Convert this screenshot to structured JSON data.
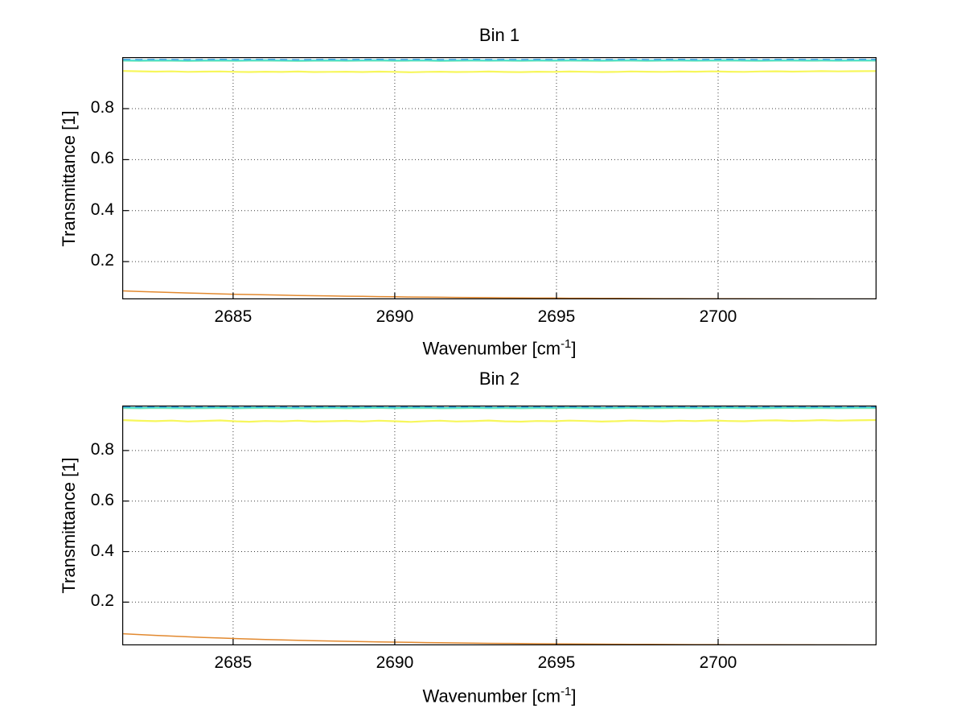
{
  "style": {
    "background": "#ffffff",
    "axis_color": "#000000",
    "grid_color": "#3c3c3c",
    "text_color": "#000000"
  },
  "labels": {
    "ylabel": "Transmittance [1]",
    "xlabel_pre": "Wavenumber [cm",
    "xlabel_sup": "-1",
    "xlabel_post": "]"
  },
  "chart_data": [
    {
      "type": "line",
      "title": "Bin 1",
      "xlabel": "Wavenumber [cm^-1]",
      "ylabel": "Transmittance [1]",
      "xlim": [
        2681.57,
        2704.9
      ],
      "ylim": [
        0.052,
        1.002
      ],
      "xticks": [
        2685,
        2690,
        2695,
        2700
      ],
      "yticks": [
        0.2,
        0.4,
        0.6,
        0.8
      ],
      "grid": true,
      "legend": false,
      "x": [
        2681.6,
        2682.1,
        2682.6,
        2683.1,
        2683.6,
        2684.1,
        2684.6,
        2685.1,
        2685.5,
        2686.0,
        2686.5,
        2687.0,
        2687.5,
        2688.0,
        2688.5,
        2689.0,
        2689.5,
        2690.0,
        2690.5,
        2691.0,
        2691.4,
        2691.9,
        2692.4,
        2692.9,
        2693.4,
        2693.9,
        2694.4,
        2694.9,
        2695.4,
        2695.9,
        2696.4,
        2696.9,
        2697.3,
        2697.8,
        2698.3,
        2698.8,
        2699.3,
        2699.8,
        2700.3,
        2700.8,
        2701.3,
        2701.8,
        2702.3,
        2702.8,
        2703.2,
        2703.7,
        2704.2,
        2704.9
      ],
      "series": [
        {
          "name": "upper-band-green",
          "color": "#7ae6b4",
          "dash": false,
          "values": [
            0.9868,
            0.9862,
            0.9871,
            0.9865,
            0.9858,
            0.9866,
            0.9872,
            0.9861,
            0.9867,
            0.9873,
            0.9864,
            0.9859,
            0.9866,
            0.9871,
            0.9863,
            0.9868,
            0.9874,
            0.9862,
            0.9867,
            0.9872,
            0.986,
            0.9866,
            0.9871,
            0.9864,
            0.9869,
            0.9863,
            0.987,
            0.9865,
            0.9872,
            0.9866,
            0.9861,
            0.9868,
            0.9873,
            0.9862,
            0.9867,
            0.9871,
            0.9864,
            0.9869,
            0.9874,
            0.9866,
            0.9862,
            0.9868,
            0.9872,
            0.9865,
            0.987,
            0.9864,
            0.9869,
            0.9867
          ]
        },
        {
          "name": "upper-band-cyan",
          "color": "#40e0d5",
          "dash": false,
          "values": [
            0.9902,
            0.9896,
            0.9905,
            0.9899,
            0.9893,
            0.9901,
            0.9907,
            0.9895,
            0.9902,
            0.9908,
            0.9898,
            0.9894,
            0.9901,
            0.9906,
            0.9897,
            0.9903,
            0.9909,
            0.9896,
            0.9902,
            0.9907,
            0.9895,
            0.9901,
            0.9906,
            0.9898,
            0.9904,
            0.9897,
            0.9905,
            0.9899,
            0.9907,
            0.9901,
            0.9896,
            0.9903,
            0.9908,
            0.9897,
            0.9902,
            0.9906,
            0.9898,
            0.9904,
            0.9909,
            0.9901,
            0.9897,
            0.9903,
            0.9907,
            0.9899,
            0.9905,
            0.9898,
            0.9904,
            0.9902
          ]
        },
        {
          "name": "upper-band-blue-dashed",
          "color": "#3d9fe0",
          "dash": true,
          "values": [
            0.9928,
            0.9922,
            0.993,
            0.9925,
            0.9919,
            0.9926,
            0.9932,
            0.9921,
            0.9927,
            0.9933,
            0.9924,
            0.992,
            0.9926,
            0.9931,
            0.9923,
            0.9928,
            0.9934,
            0.9922,
            0.9927,
            0.9932,
            0.9921,
            0.9926,
            0.9931,
            0.9924,
            0.9929,
            0.9923,
            0.993,
            0.9925,
            0.9932,
            0.9926,
            0.9921,
            0.9928,
            0.9933,
            0.9923,
            0.9927,
            0.9931,
            0.9924,
            0.9929,
            0.9934,
            0.9926,
            0.9922,
            0.9928,
            0.9932,
            0.9925,
            0.993,
            0.9924,
            0.9929,
            0.9927
          ]
        },
        {
          "name": "mid-yellow",
          "color": "#f7f75c",
          "dash": false,
          "values": [
            0.9478,
            0.9465,
            0.9452,
            0.946,
            0.9444,
            0.9451,
            0.9458,
            0.9441,
            0.9435,
            0.9449,
            0.944,
            0.9455,
            0.9437,
            0.9444,
            0.945,
            0.9436,
            0.9452,
            0.9441,
            0.9428,
            0.9443,
            0.945,
            0.9435,
            0.9442,
            0.9456,
            0.944,
            0.9434,
            0.9448,
            0.9441,
            0.9455,
            0.9447,
            0.9436,
            0.9444,
            0.9457,
            0.9449,
            0.9441,
            0.9456,
            0.9448,
            0.9462,
            0.945,
            0.9444,
            0.9458,
            0.9465,
            0.9452,
            0.946,
            0.9472,
            0.9461,
            0.9468,
            0.9474
          ]
        },
        {
          "name": "lower-orange",
          "color": "#e2892f",
          "dash": false,
          "values": [
            0.085,
            0.0827,
            0.0806,
            0.0787,
            0.0768,
            0.0752,
            0.0735,
            0.072,
            0.0708,
            0.0697,
            0.0684,
            0.0673,
            0.0661,
            0.0653,
            0.0642,
            0.0636,
            0.0626,
            0.062,
            0.0611,
            0.0607,
            0.0601,
            0.0597,
            0.059,
            0.0587,
            0.058,
            0.0578,
            0.0572,
            0.057,
            0.0565,
            0.0564,
            0.0559,
            0.0558,
            0.0554,
            0.0553,
            0.0549,
            0.0549,
            0.0545,
            0.0545,
            0.0542,
            0.0542,
            0.0539,
            0.0539,
            0.0536,
            0.0536,
            0.0534,
            0.0534,
            0.0532,
            0.0532
          ]
        }
      ]
    },
    {
      "type": "line",
      "title": "Bin 2",
      "xlabel": "Wavenumber [cm^-1]",
      "ylabel": "Transmittance [1]",
      "xlim": [
        2681.57,
        2704.9
      ],
      "ylim": [
        0.029,
        0.978
      ],
      "xticks": [
        2685,
        2690,
        2695,
        2700
      ],
      "yticks": [
        0.2,
        0.4,
        0.6,
        0.8
      ],
      "grid": true,
      "legend": false,
      "x": [
        2681.6,
        2682.1,
        2682.6,
        2683.1,
        2683.6,
        2684.1,
        2684.6,
        2685.1,
        2685.5,
        2686.0,
        2686.5,
        2687.0,
        2687.5,
        2688.0,
        2688.5,
        2689.0,
        2689.5,
        2690.0,
        2690.5,
        2691.0,
        2691.4,
        2691.9,
        2692.4,
        2692.9,
        2693.4,
        2693.9,
        2694.4,
        2694.9,
        2695.4,
        2695.9,
        2696.4,
        2696.9,
        2697.3,
        2697.8,
        2698.3,
        2698.8,
        2699.3,
        2699.8,
        2700.3,
        2700.8,
        2701.3,
        2701.8,
        2702.3,
        2702.8,
        2703.2,
        2703.7,
        2704.2,
        2704.9
      ],
      "series": [
        {
          "name": "upper-band-green",
          "color": "#7ae6b4",
          "dash": false,
          "values": [
            0.9668,
            0.9662,
            0.9671,
            0.9665,
            0.9658,
            0.9666,
            0.9672,
            0.9661,
            0.9667,
            0.9673,
            0.9664,
            0.9659,
            0.9666,
            0.9671,
            0.9663,
            0.9668,
            0.9674,
            0.9662,
            0.9667,
            0.9672,
            0.966,
            0.9666,
            0.9671,
            0.9664,
            0.9669,
            0.9663,
            0.967,
            0.9665,
            0.9672,
            0.9666,
            0.9661,
            0.9668,
            0.9673,
            0.9662,
            0.9667,
            0.9671,
            0.9664,
            0.9669,
            0.9674,
            0.9666,
            0.9662,
            0.9668,
            0.9672,
            0.9665,
            0.967,
            0.9664,
            0.9669,
            0.9667
          ]
        },
        {
          "name": "upper-band-cyan",
          "color": "#40e0d5",
          "dash": false,
          "values": [
            0.9702,
            0.9696,
            0.9705,
            0.9699,
            0.9693,
            0.9701,
            0.9707,
            0.9695,
            0.9702,
            0.9708,
            0.9698,
            0.9694,
            0.9701,
            0.9706,
            0.9697,
            0.9703,
            0.9709,
            0.9696,
            0.9702,
            0.9707,
            0.9695,
            0.9701,
            0.9706,
            0.9698,
            0.9704,
            0.9697,
            0.9705,
            0.9699,
            0.9707,
            0.9701,
            0.9696,
            0.9703,
            0.9708,
            0.9697,
            0.9702,
            0.9706,
            0.9698,
            0.9704,
            0.9709,
            0.9701,
            0.9697,
            0.9703,
            0.9707,
            0.9699,
            0.9705,
            0.9698,
            0.9704,
            0.9702
          ]
        },
        {
          "name": "upper-band-blue-dashed",
          "color": "#3d9fe0",
          "dash": true,
          "values": [
            0.9728,
            0.9722,
            0.973,
            0.9725,
            0.9719,
            0.9726,
            0.9732,
            0.9721,
            0.9727,
            0.9733,
            0.9724,
            0.972,
            0.9726,
            0.9731,
            0.9723,
            0.9728,
            0.9734,
            0.9722,
            0.9727,
            0.9732,
            0.9721,
            0.9726,
            0.9731,
            0.9724,
            0.9729,
            0.9723,
            0.973,
            0.9725,
            0.9732,
            0.9726,
            0.9721,
            0.9728,
            0.9733,
            0.9723,
            0.9727,
            0.9731,
            0.9724,
            0.9729,
            0.9734,
            0.9726,
            0.9722,
            0.9728,
            0.9732,
            0.9725,
            0.973,
            0.9724,
            0.9729,
            0.9727
          ]
        },
        {
          "name": "mid-yellow",
          "color": "#f7f75c",
          "dash": false,
          "values": [
            0.9205,
            0.9178,
            0.9162,
            0.9185,
            0.915,
            0.9172,
            0.919,
            0.9155,
            0.914,
            0.9168,
            0.9152,
            0.918,
            0.9145,
            0.916,
            0.9175,
            0.9148,
            0.9182,
            0.9158,
            0.9135,
            0.9165,
            0.918,
            0.915,
            0.9163,
            0.9188,
            0.9156,
            0.9142,
            0.917,
            0.9158,
            0.9185,
            0.9168,
            0.9146,
            0.9162,
            0.9186,
            0.917,
            0.9155,
            0.918,
            0.9165,
            0.9192,
            0.917,
            0.9158,
            0.9183,
            0.9195,
            0.9172,
            0.9185,
            0.9203,
            0.9182,
            0.9195,
            0.9206
          ]
        },
        {
          "name": "lower-orange",
          "color": "#e2892f",
          "dash": false,
          "values": [
            0.075,
            0.0716,
            0.0684,
            0.0655,
            0.0628,
            0.0603,
            0.058,
            0.0558,
            0.0543,
            0.0524,
            0.0506,
            0.049,
            0.0475,
            0.0462,
            0.0449,
            0.0437,
            0.0426,
            0.0416,
            0.0407,
            0.0398,
            0.0392,
            0.0384,
            0.0377,
            0.0371,
            0.0365,
            0.0359,
            0.0354,
            0.0349,
            0.0345,
            0.0341,
            0.0337,
            0.0334,
            0.0331,
            0.0328,
            0.0325,
            0.0323,
            0.032,
            0.0318,
            0.0316,
            0.0314,
            0.0312,
            0.0311,
            0.0309,
            0.0308,
            0.0307,
            0.0305,
            0.0304,
            0.0303
          ]
        }
      ]
    }
  ]
}
